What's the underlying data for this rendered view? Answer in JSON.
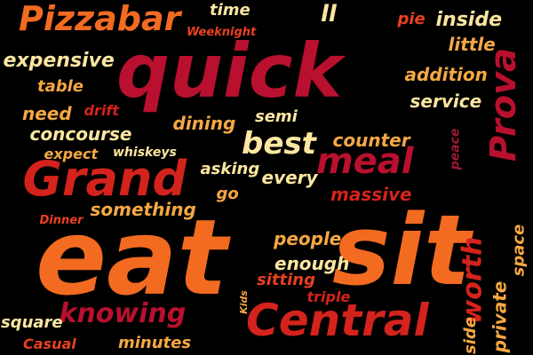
{
  "word_cloud": {
    "colors": {
      "background": "#000000",
      "crimson": "#b8102e",
      "red": "#d4231c",
      "orange_red": "#e8401f",
      "orange": "#f26b21",
      "amber": "#f5a843",
      "cream": "#fce6a0",
      "maroon": "#9e1a33"
    },
    "words": [
      {
        "id": "eat",
        "text": "eat",
        "color": "#f26b21",
        "rotated": false
      },
      {
        "id": "sit",
        "text": "sit",
        "color": "#f26b21",
        "rotated": false
      },
      {
        "id": "quick",
        "text": "quick",
        "color": "#b8102e",
        "rotated": false
      },
      {
        "id": "grand",
        "text": "Grand",
        "color": "#d4231c",
        "rotated": false
      },
      {
        "id": "central",
        "text": "Central",
        "color": "#d4231c",
        "rotated": false
      },
      {
        "id": "prova",
        "text": "Prova",
        "color": "#b8102e",
        "rotated": true
      },
      {
        "id": "pizzabar",
        "text": "Pizzabar",
        "color": "#f26b21",
        "rotated": false
      },
      {
        "id": "meal",
        "text": "meal",
        "color": "#b8102e",
        "rotated": false
      },
      {
        "id": "best",
        "text": "best",
        "color": "#fce6a0",
        "rotated": false
      },
      {
        "id": "knowing",
        "text": "knowing",
        "color": "#b8102e",
        "rotated": false
      },
      {
        "id": "worth",
        "text": "worth",
        "color": "#d4231c",
        "rotated": true
      },
      {
        "id": "ll",
        "text": "ll",
        "color": "#fce6a0",
        "rotated": false
      },
      {
        "id": "time",
        "text": "time",
        "color": "#fce6a0",
        "rotated": false
      },
      {
        "id": "weeknight",
        "text": "Weeknight",
        "color": "#e8401f",
        "rotated": false
      },
      {
        "id": "expensive",
        "text": "expensive",
        "color": "#fce6a0",
        "rotated": false
      },
      {
        "id": "table",
        "text": "table",
        "color": "#f5a843",
        "rotated": false
      },
      {
        "id": "need",
        "text": "need",
        "color": "#f5a843",
        "rotated": false
      },
      {
        "id": "drift",
        "text": "drift",
        "color": "#d4231c",
        "rotated": false
      },
      {
        "id": "concourse",
        "text": "concourse",
        "color": "#fce6a0",
        "rotated": false
      },
      {
        "id": "expect",
        "text": "expect",
        "color": "#f5a843",
        "rotated": false
      },
      {
        "id": "whiskeys",
        "text": "whiskeys",
        "color": "#fce6a0",
        "rotated": false
      },
      {
        "id": "pie",
        "text": "pie",
        "color": "#e8401f",
        "rotated": false
      },
      {
        "id": "inside",
        "text": "inside",
        "color": "#fce6a0",
        "rotated": false
      },
      {
        "id": "little",
        "text": "little",
        "color": "#f5a843",
        "rotated": false
      },
      {
        "id": "addition",
        "text": "addition",
        "color": "#f5a843",
        "rotated": false
      },
      {
        "id": "service",
        "text": "service",
        "color": "#fce6a0",
        "rotated": false
      },
      {
        "id": "semi",
        "text": "semi",
        "color": "#fce6a0",
        "rotated": false
      },
      {
        "id": "dining",
        "text": "dining",
        "color": "#f5a843",
        "rotated": false
      },
      {
        "id": "counter",
        "text": "counter",
        "color": "#f5a843",
        "rotated": false
      },
      {
        "id": "peace",
        "text": "peace",
        "color": "#9e1a33",
        "rotated": true
      },
      {
        "id": "asking",
        "text": "asking",
        "color": "#fce6a0",
        "rotated": false
      },
      {
        "id": "every",
        "text": "every",
        "color": "#fce6a0",
        "rotated": false
      },
      {
        "id": "massive",
        "text": "massive",
        "color": "#d4231c",
        "rotated": false
      },
      {
        "id": "go",
        "text": "go",
        "color": "#f5a843",
        "rotated": false
      },
      {
        "id": "something",
        "text": "something",
        "color": "#f5a843",
        "rotated": false
      },
      {
        "id": "dinner",
        "text": "Dinner",
        "color": "#e8401f",
        "rotated": false
      },
      {
        "id": "people",
        "text": "people",
        "color": "#f5a843",
        "rotated": false
      },
      {
        "id": "enough",
        "text": "enough",
        "color": "#fce6a0",
        "rotated": false
      },
      {
        "id": "sitting",
        "text": "sitting",
        "color": "#e8401f",
        "rotated": false
      },
      {
        "id": "triple",
        "text": "triple",
        "color": "#d4231c",
        "rotated": false
      },
      {
        "id": "kids",
        "text": "Kids",
        "color": "#f5a843",
        "rotated": true
      },
      {
        "id": "square",
        "text": "square",
        "color": "#fce6a0",
        "rotated": false
      },
      {
        "id": "casual",
        "text": "Casual",
        "color": "#e8401f",
        "rotated": false
      },
      {
        "id": "minutes",
        "text": "minutes",
        "color": "#f5a843",
        "rotated": false
      },
      {
        "id": "side",
        "text": "side",
        "color": "#f5a843",
        "rotated": true
      },
      {
        "id": "private",
        "text": "private",
        "color": "#f5a843",
        "rotated": true
      },
      {
        "id": "space",
        "text": "space",
        "color": "#f5a843",
        "rotated": true
      }
    ]
  }
}
